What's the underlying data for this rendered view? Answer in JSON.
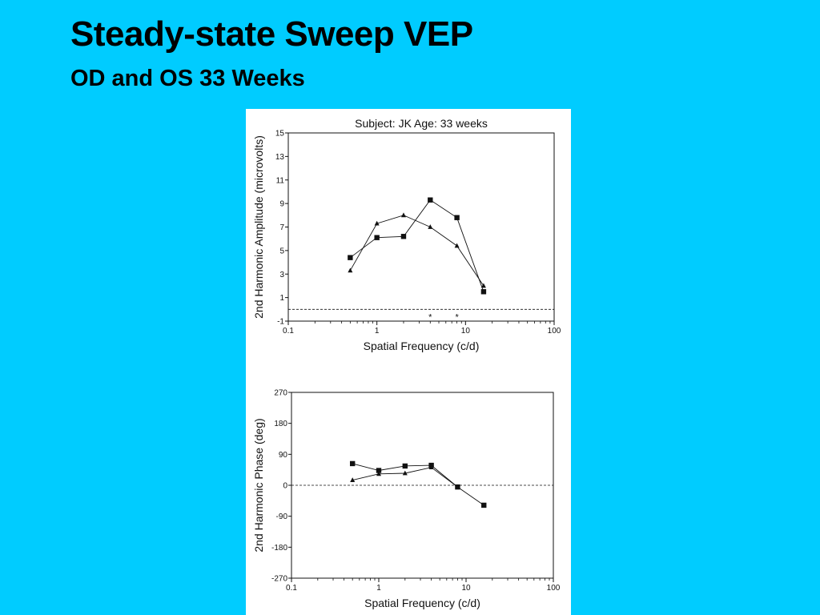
{
  "slide": {
    "title": "Steady-state Sweep VEP",
    "subtitle": "OD and OS  33 Weeks"
  },
  "colors": {
    "background": "#00CCFF",
    "figure": "#FFFFFF",
    "ink": "#111111"
  },
  "chart_data": [
    {
      "type": "line",
      "title": "Subject: JK    Age:  33 weeks",
      "xlabel": "Spatial Frequency (c/d)",
      "ylabel": "2nd Harmonic Amplitude (microvolts)",
      "xscale": "log",
      "xlim": [
        0.1,
        100
      ],
      "ylim": [
        -1,
        15
      ],
      "xticks": [
        0.1,
        1,
        10,
        100
      ],
      "xtick_labels": [
        "0.1",
        "1",
        "10",
        "100"
      ],
      "yticks": [
        -1,
        1,
        3,
        5,
        7,
        9,
        11,
        13,
        15
      ],
      "ytick_labels": [
        "-1",
        "1",
        "3",
        "5",
        "7",
        "9",
        "11",
        "13",
        "15"
      ],
      "noise_line": 0,
      "noise_markers": [
        {
          "x": 4,
          "y": -0.5,
          "label": "*"
        },
        {
          "x": 8,
          "y": -0.5,
          "label": "*"
        }
      ],
      "series": [
        {
          "marker": "square",
          "x": [
            0.5,
            1,
            2,
            4,
            8,
            16
          ],
          "y": [
            4.4,
            6.1,
            6.2,
            9.3,
            7.8,
            1.5
          ]
        },
        {
          "marker": "triangle",
          "x": [
            0.5,
            1,
            2,
            4,
            8,
            16
          ],
          "y": [
            3.3,
            7.3,
            8.0,
            7.0,
            5.4,
            2.0
          ]
        }
      ]
    },
    {
      "type": "line",
      "xlabel": "Spatial Frequency (c/d)",
      "ylabel": "2nd Harmonic Phase (deg)",
      "xscale": "log",
      "xlim": [
        0.1,
        100
      ],
      "ylim": [
        -270,
        270
      ],
      "xticks": [
        0.1,
        1,
        10,
        100
      ],
      "xtick_labels": [
        "0.1",
        "1",
        "10",
        "100"
      ],
      "yticks": [
        -270,
        -180,
        -90,
        0,
        90,
        180,
        270
      ],
      "ytick_labels": [
        "-270",
        "-180",
        "-90",
        "0",
        "90",
        "180",
        "270"
      ],
      "noise_line": 0,
      "series": [
        {
          "marker": "square",
          "x": [
            0.5,
            1,
            2,
            4,
            8,
            16
          ],
          "y": [
            63,
            43,
            56,
            58,
            -5,
            -58
          ]
        },
        {
          "marker": "triangle",
          "x": [
            0.5,
            1,
            2,
            4,
            8
          ],
          "y": [
            15,
            33,
            35,
            52,
            -5
          ]
        }
      ]
    }
  ]
}
